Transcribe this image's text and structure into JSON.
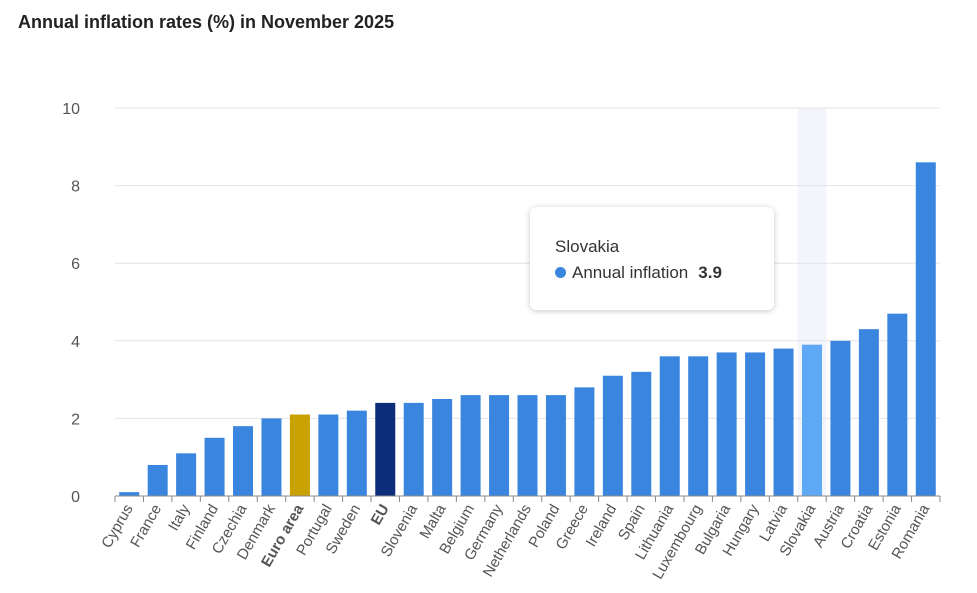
{
  "chart_data": {
    "type": "bar",
    "title": "Annual inflation rates (%) in November 2025",
    "categories": [
      "Cyprus",
      "France",
      "Italy",
      "Finland",
      "Czechia",
      "Denmark",
      "Euro area",
      "Portugal",
      "Sweden",
      "EU",
      "Slovenia",
      "Malta",
      "Belgium",
      "Germany",
      "Netherlands",
      "Poland",
      "Greece",
      "Ireland",
      "Spain",
      "Lithuania",
      "Luxembourg",
      "Bulgaria",
      "Hungary",
      "Latvia",
      "Slovakia",
      "Austria",
      "Croatia",
      "Estonia",
      "Romania"
    ],
    "series": [
      {
        "name": "Annual inflation",
        "values": [
          0.1,
          0.8,
          1.1,
          1.5,
          1.8,
          2.0,
          2.1,
          2.1,
          2.2,
          2.4,
          2.4,
          2.5,
          2.6,
          2.6,
          2.6,
          2.6,
          2.8,
          3.1,
          3.2,
          3.6,
          3.6,
          3.7,
          3.7,
          3.8,
          3.9,
          4.0,
          4.3,
          4.7,
          8.6
        ]
      }
    ],
    "bold_categories": [
      "Euro area",
      "EU"
    ],
    "ylim": [
      0,
      10
    ],
    "yticks": [
      0,
      2,
      4,
      6,
      8,
      10
    ],
    "grid": true,
    "colors": {
      "default": "#3a86df",
      "Euro area": "#c9a100",
      "EU": "#0c2d7a",
      "hover": "#5ea8f6",
      "hover_band": "#f3f5fc"
    },
    "tooltip": {
      "category": "Slovakia",
      "series": "Annual inflation",
      "value": "3.9"
    }
  }
}
